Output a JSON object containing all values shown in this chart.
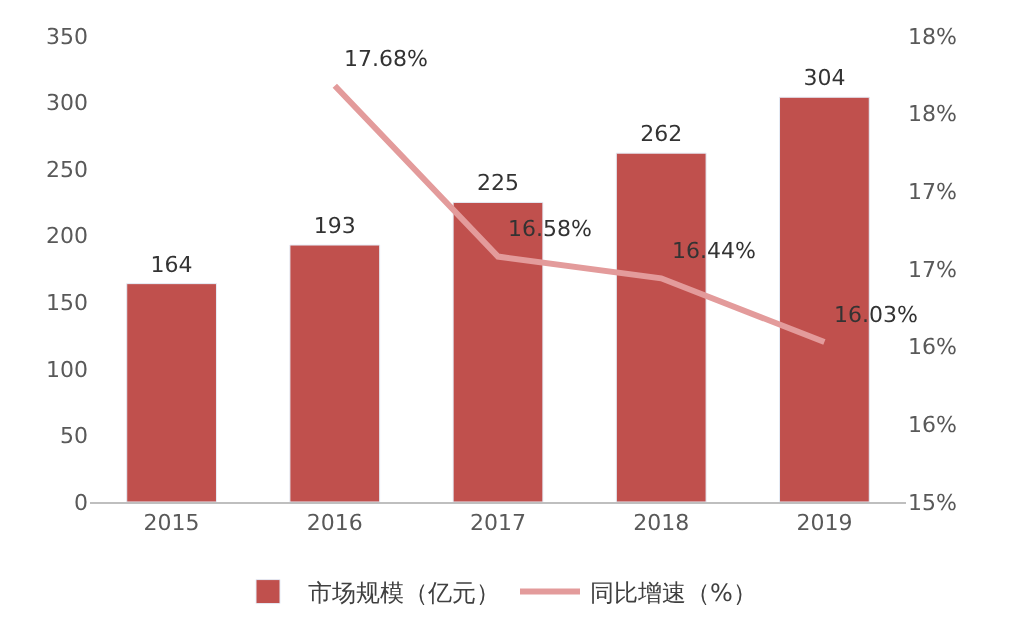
{
  "chart_data": {
    "type": "bar",
    "categories": [
      "2015",
      "2016",
      "2017",
      "2018",
      "2019"
    ],
    "series": [
      {
        "name": "市场规模（亿元）",
        "color": "#c0504d",
        "values": [
          164,
          193,
          225,
          262,
          304
        ],
        "value_labels": [
          "164",
          "193",
          "225",
          "262",
          "304"
        ]
      },
      {
        "name": "同比增速（%）",
        "type": "line",
        "axis": "y2",
        "color": "#e39b9b",
        "values": [
          null,
          17.68,
          16.58,
          16.44,
          16.03
        ],
        "value_labels": [
          null,
          "17.68%",
          "16.58%",
          "16.44%",
          "16.03%"
        ]
      }
    ],
    "ylim": [
      0,
      350
    ],
    "yticks": [
      0,
      50,
      100,
      150,
      200,
      250,
      300,
      350
    ],
    "y2lim": [
      15,
      18
    ],
    "y2ticks": [
      {
        "value": 15,
        "label": "15%"
      },
      {
        "value": 15.5,
        "label": "16%"
      },
      {
        "value": 16,
        "label": "16%"
      },
      {
        "value": 16.5,
        "label": "17%"
      },
      {
        "value": 17,
        "label": "17%"
      },
      {
        "value": 17.5,
        "label": "18%"
      },
      {
        "value": 18,
        "label": "18%"
      }
    ],
    "legend": "bottom",
    "marker": "none",
    "line_style": "solid"
  }
}
